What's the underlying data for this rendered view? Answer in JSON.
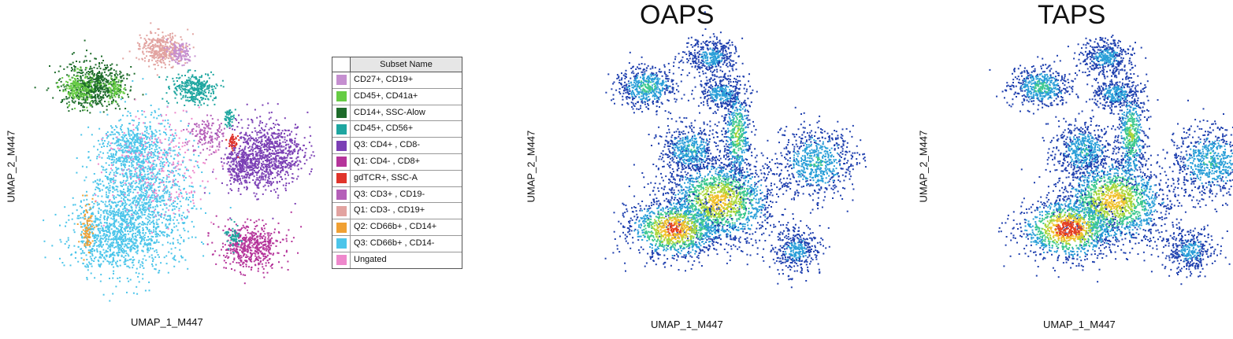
{
  "chart_data": [
    {
      "type": "scatter",
      "title": "",
      "xlabel": "UMAP_1_M447",
      "ylabel": "UMAP_2_M447",
      "coloring": "subset",
      "legend": {
        "title": "Subset Name",
        "placement": "right",
        "entries": [
          {
            "name": "CD27+, CD19+",
            "color": "#c58fd0"
          },
          {
            "name": "CD45+, CD41a+",
            "color": "#66cc44"
          },
          {
            "name": "CD14+, SSC-Alow",
            "color": "#1d6b2a"
          },
          {
            "name": "CD45+, CD56+",
            "color": "#1ea6a0"
          },
          {
            "name": "Q3: CD4+ , CD8-",
            "color": "#7b3fb5"
          },
          {
            "name": "Q1: CD4- , CD8+",
            "color": "#b5349a"
          },
          {
            "name": "gdTCR+, SSC-A",
            "color": "#e0342b"
          },
          {
            "name": "Q3: CD3+ , CD19-",
            "color": "#b45fb8"
          },
          {
            "name": "Q1: CD3- , CD19+",
            "color": "#e2a3a0"
          },
          {
            "name": "Q2: CD66b+ , CD14+",
            "color": "#f0a033"
          },
          {
            "name": "Q3: CD66b+ , CD14-",
            "color": "#4cc5ea"
          },
          {
            "name": "Ungated",
            "color": "#ee88cc"
          }
        ]
      }
    },
    {
      "type": "scatter",
      "title": "OAPS",
      "xlabel": "UMAP_1_M447",
      "ylabel": "UMAP_2_M447",
      "coloring": "density",
      "colormap": [
        "#1e3fae",
        "#2a9fd8",
        "#3ec98f",
        "#a8d63a",
        "#f0c02a",
        "#e8401f"
      ]
    },
    {
      "type": "scatter",
      "title": "TAPS",
      "xlabel": "UMAP_1_M447",
      "ylabel": "UMAP_2_M447",
      "coloring": "density",
      "colormap": [
        "#1e3fae",
        "#2a9fd8",
        "#3ec98f",
        "#a8d63a",
        "#f0c02a",
        "#e8401f"
      ]
    }
  ]
}
